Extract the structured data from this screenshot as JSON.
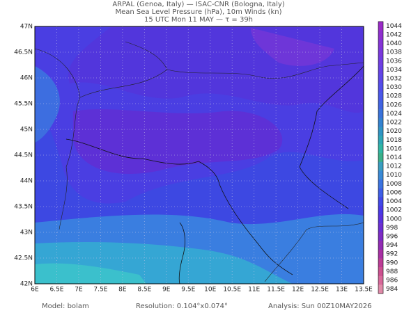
{
  "header": {
    "lines": [
      "ARPAL (Genoa, Italy)  —  ISAC-CNR (Bologna, Italy)",
      "Mean Sea Level Pressure (hPa), 10m Winds (kn)",
      "15 UTC Mon 11 MAY  —  τ = 39h"
    ]
  },
  "map": {
    "lon_labels": [
      "6E",
      "6.5E",
      "7E",
      "7.5E",
      "8E",
      "8.5E",
      "9E",
      "9.5E",
      "10E",
      "10.5E",
      "11E",
      "11.5E",
      "12E",
      "12.5E",
      "13E",
      "13.5E"
    ],
    "lat_labels": [
      "47N",
      "46.5N",
      "46N",
      "45.5N",
      "45N",
      "44.5N",
      "44N",
      "43.5N",
      "43N",
      "42.5N",
      "42N"
    ]
  },
  "colorbar": {
    "labels": [
      "1044",
      "1042",
      "1040",
      "1038",
      "1036",
      "1034",
      "1032",
      "1030",
      "1028",
      "1026",
      "1024",
      "1022",
      "1020",
      "1018",
      "1016",
      "1014",
      "1012",
      "1010",
      "1008",
      "1006",
      "1004",
      "1002",
      "1000",
      "998",
      "996",
      "994",
      "992",
      "990",
      "988",
      "986",
      "984"
    ],
    "colors": [
      "#9a2bc7",
      "#8f30cf",
      "#8534d6",
      "#7b38dc",
      "#713de1",
      "#6742e5",
      "#5d48e8",
      "#524fea",
      "#4a58e8",
      "#4264e2",
      "#3a72da",
      "#3482d0",
      "#3094c4",
      "#2ea6b6",
      "#30b6a4",
      "#3ab08a",
      "#3a9ec0",
      "#3a8ad6",
      "#3c74e0",
      "#3e5ee6",
      "#4248e8",
      "#4a3ae6",
      "#5a32de",
      "#6c2ed2",
      "#7e2cc4",
      "#922cb4",
      "#a830a4",
      "#bc3c96",
      "#cc5090",
      "#d8689a",
      "#e08aa8"
    ]
  },
  "footer": {
    "model": "Model: bolam",
    "resolution": "Resolution: 0.104°x0.074°",
    "analysis": "Analysis: Sun 00Z10MAY2026"
  }
}
